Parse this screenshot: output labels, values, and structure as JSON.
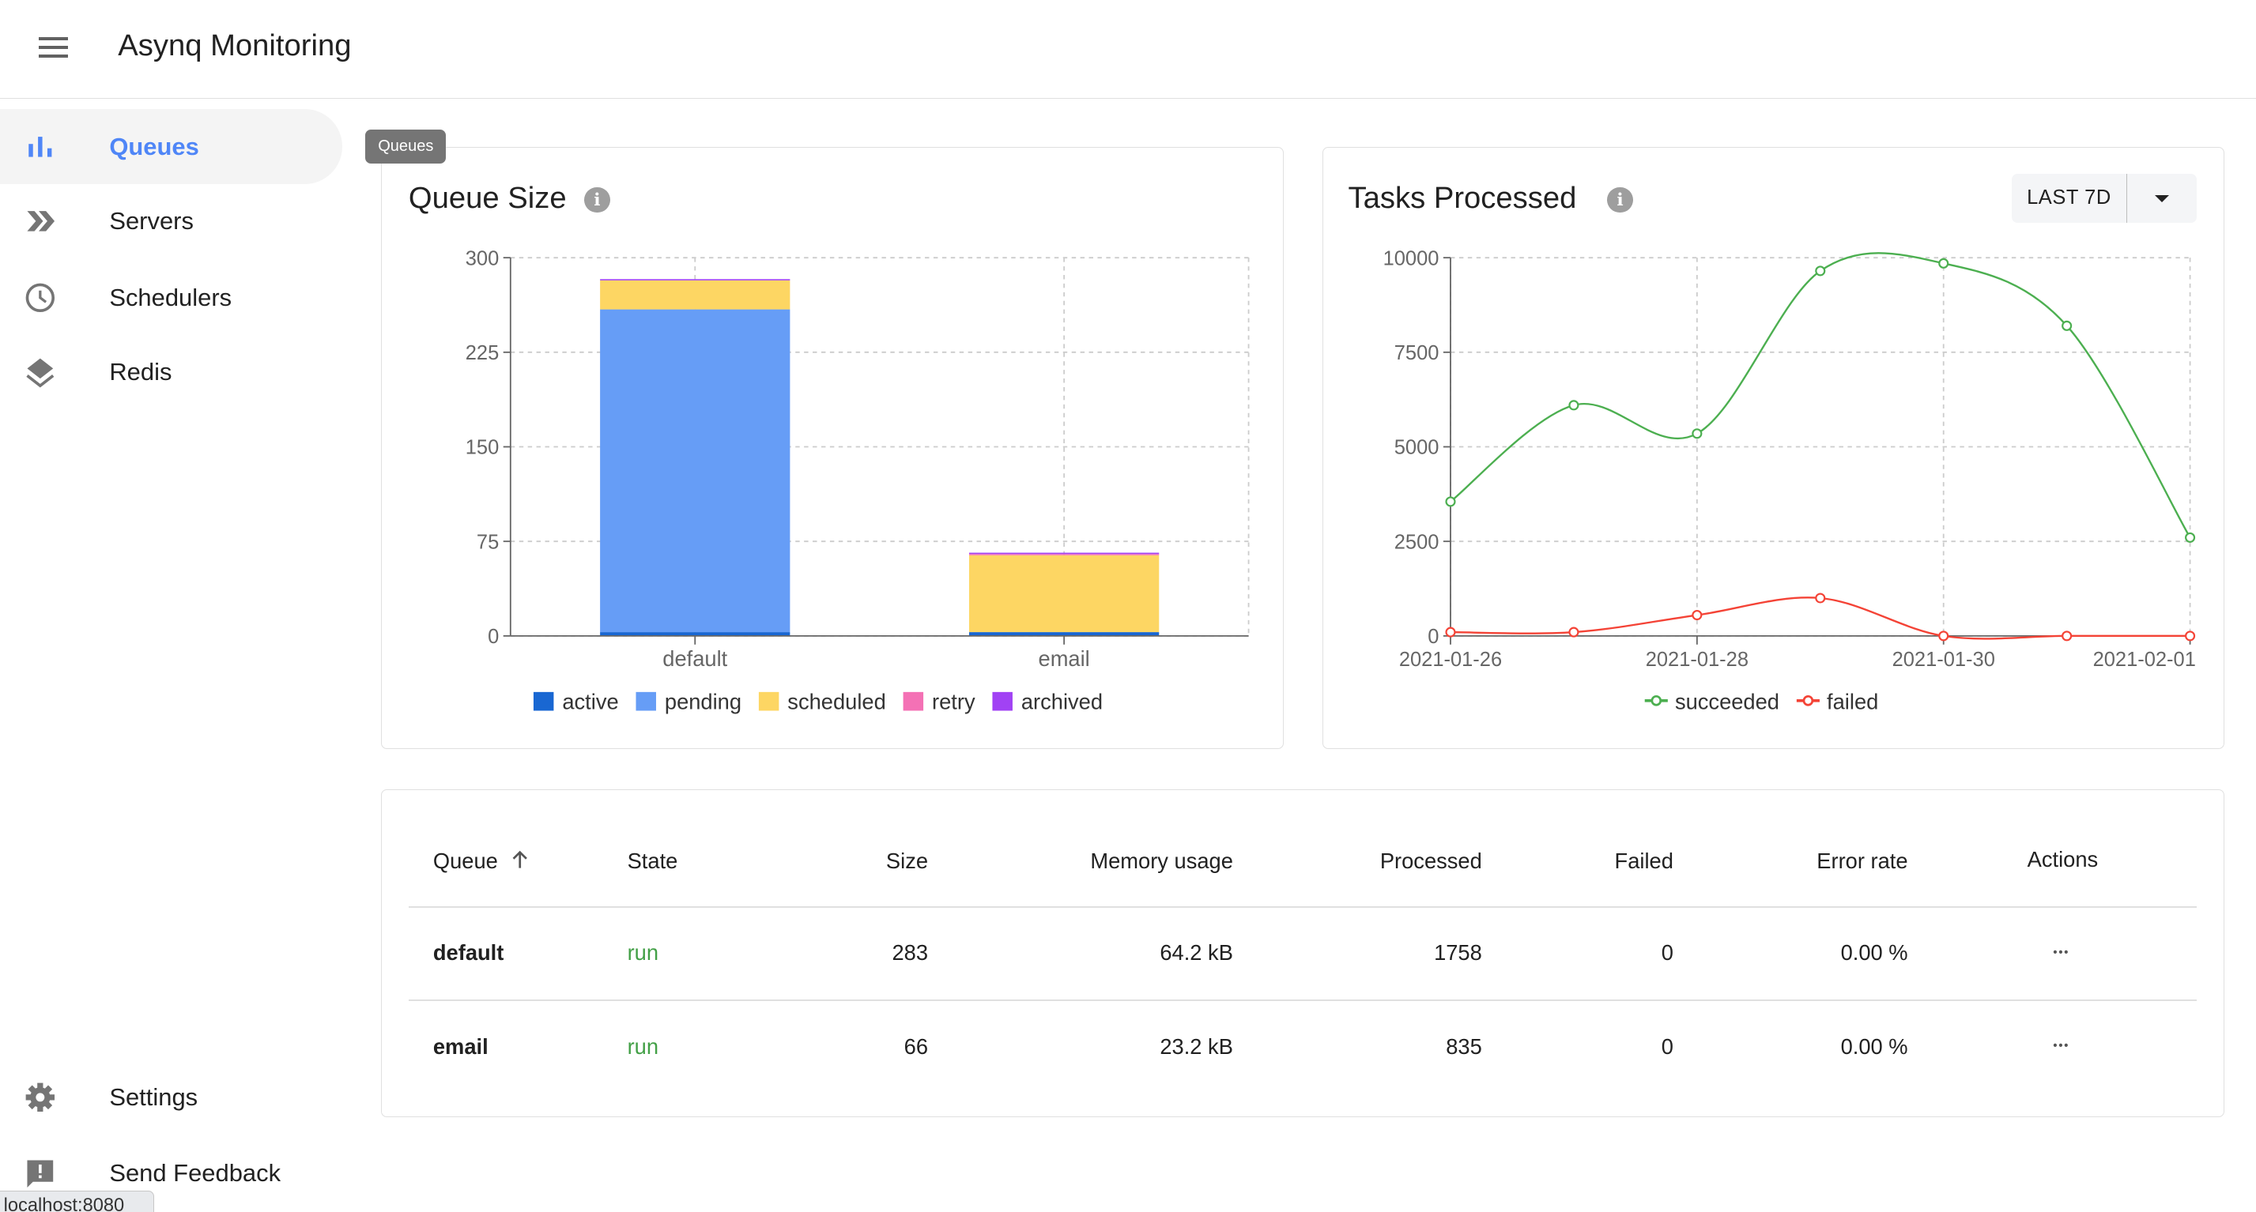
{
  "app": {
    "title": "Asynq Monitoring",
    "menu_icon": "hamburger-icon"
  },
  "sidebar": {
    "items": [
      {
        "label": "Queues",
        "icon": "bar-chart-icon",
        "active": true
      },
      {
        "label": "Servers",
        "icon": "double-chevron-icon"
      },
      {
        "label": "Schedulers",
        "icon": "clock-icon"
      },
      {
        "label": "Redis",
        "icon": "layers-icon"
      }
    ],
    "bottom_items": [
      {
        "label": "Settings",
        "icon": "gear-icon"
      },
      {
        "label": "Send Feedback",
        "icon": "feedback-icon"
      }
    ],
    "accent": "#4f86f7"
  },
  "tooltip": "Queues",
  "status_bar": "localhost:8080",
  "queue_size_card": {
    "title": "Queue Size"
  },
  "tasks_card": {
    "title": "Tasks Processed",
    "range_label": "LAST 7D"
  },
  "chart_data": [
    {
      "type": "bar",
      "stacked": true,
      "title": "Queue Size",
      "categories": [
        "default",
        "email"
      ],
      "ylim": [
        0,
        300
      ],
      "yticks": [
        0,
        75,
        150,
        225,
        300
      ],
      "grid": true,
      "legend": "bottom",
      "series": [
        {
          "name": "active",
          "values": [
            3,
            3
          ],
          "color": "#1967d2"
        },
        {
          "name": "pending",
          "values": [
            256,
            0
          ],
          "color": "#669df6"
        },
        {
          "name": "scheduled",
          "values": [
            23,
            61
          ],
          "color": "#fdd663"
        },
        {
          "name": "retry",
          "values": [
            0,
            1
          ],
          "color": "#f471b5"
        },
        {
          "name": "archived",
          "values": [
            1,
            1
          ],
          "color": "#a142f4"
        }
      ]
    },
    {
      "type": "line",
      "title": "Tasks Processed",
      "x": [
        "2021-01-26",
        "2021-01-27",
        "2021-01-28",
        "2021-01-29",
        "2021-01-30",
        "2021-01-31",
        "2021-02-01"
      ],
      "xticks": [
        "2021-01-26",
        "2021-01-28",
        "2021-01-30",
        "2021-02-01"
      ],
      "ylim": [
        0,
        10000
      ],
      "yticks": [
        0,
        2500,
        5000,
        7500,
        10000
      ],
      "grid": true,
      "legend": "bottom",
      "series": [
        {
          "name": "succeeded",
          "values": [
            3550,
            6100,
            5350,
            9650,
            9850,
            8200,
            2600
          ],
          "color": "#4caf50"
        },
        {
          "name": "failed",
          "values": [
            100,
            100,
            550,
            1000,
            0,
            0,
            0
          ],
          "color": "#f44336"
        }
      ]
    }
  ],
  "table": {
    "columns": [
      "Queue",
      "State",
      "Size",
      "Memory usage",
      "Processed",
      "Failed",
      "Error rate",
      "Actions"
    ],
    "sort_icon": "arrow-up-icon",
    "rows": [
      {
        "queue": "default",
        "state": "run",
        "size": "283",
        "memory": "64.2 kB",
        "processed": "1758",
        "failed": "0",
        "error_rate": "0.00 %"
      },
      {
        "queue": "email",
        "state": "run",
        "size": "66",
        "memory": "23.2 kB",
        "processed": "835",
        "failed": "0",
        "error_rate": "0.00 %"
      }
    ],
    "state_color": "#43a047",
    "actions_icon": "more-horiz-icon"
  }
}
